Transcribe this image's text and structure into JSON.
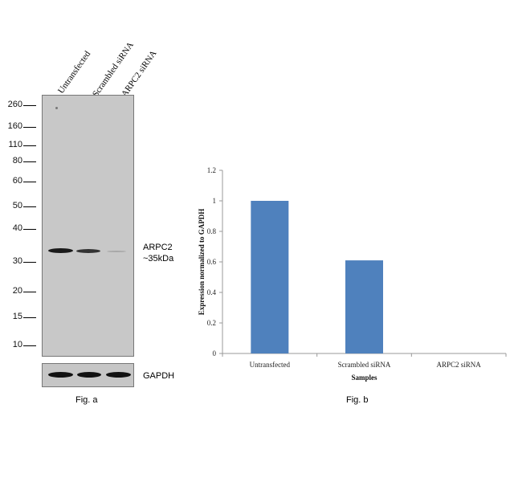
{
  "panel_a": {
    "lanes": [
      "Untransfected",
      "Scrambled siRNA",
      "ARPC2 siRNA"
    ],
    "markers": [
      "260",
      "160",
      "110",
      "80",
      "60",
      "50",
      "40",
      "30",
      "20",
      "15",
      "10"
    ],
    "target_label_line1": "ARPC2",
    "target_label_line2": "~35kDa",
    "loading_label": "GAPDH",
    "caption": "Fig. a"
  },
  "chart_data": {
    "type": "bar",
    "categories": [
      "Untransfected",
      "Scrambled siRNA",
      "ARPC2 siRNA"
    ],
    "values": [
      1.0,
      0.61,
      0.0
    ],
    "xlabel": "Samples",
    "ylabel": "Expression normalized to GAPDH",
    "ylim": [
      0,
      1.2
    ],
    "yticks": [
      "0",
      "0.2",
      "0.4",
      "0.6",
      "0.8",
      "1",
      "1.2"
    ],
    "bar_color": "#4f81bd",
    "grid": false,
    "legend": "none"
  },
  "panel_b": {
    "caption": "Fig. b"
  }
}
